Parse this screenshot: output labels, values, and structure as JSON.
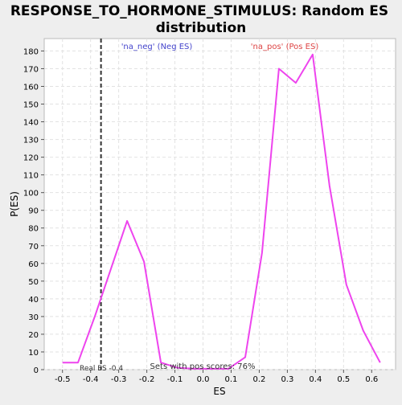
{
  "chart_data": {
    "type": "line",
    "title_line1": "RESPONSE_TO_HORMONE_STIMULUS: Random ES",
    "title_line2": "distribution",
    "xlabel": "ES",
    "ylabel": "P(ES)",
    "xlim": [
      -0.565,
      0.685
    ],
    "ylim": [
      0,
      187
    ],
    "x_ticks": [
      -0.5,
      -0.4,
      -0.3,
      -0.2,
      -0.1,
      0.0,
      0.1,
      0.2,
      0.3,
      0.4,
      0.5,
      0.6
    ],
    "x_tick_labels": [
      "-0.5",
      "-0.4",
      "-0.3",
      "-0.2",
      "-0.1",
      "0.0",
      "0.1",
      "0.2",
      "0.3",
      "0.4",
      "0.5",
      "0.6"
    ],
    "y_ticks": [
      0,
      10,
      20,
      30,
      40,
      50,
      60,
      70,
      80,
      90,
      100,
      110,
      120,
      130,
      140,
      150,
      160,
      170,
      180
    ],
    "grid": true,
    "series": [
      {
        "color": "#ee44ee",
        "x": [
          -0.5,
          -0.445,
          -0.385,
          -0.27,
          -0.21,
          -0.15,
          -0.09,
          -0.03,
          0.03,
          0.09,
          0.15,
          0.21,
          0.27,
          0.33,
          0.39,
          0.45,
          0.51,
          0.57,
          0.63
        ],
        "y": [
          4,
          4,
          30,
          84,
          61,
          4,
          1,
          0.5,
          0.5,
          0.5,
          7,
          66,
          170,
          162,
          178,
          104,
          48,
          22,
          4
        ]
      }
    ],
    "real_es": {
      "x": -0.363,
      "label": "Real ES -0.4",
      "color": "#333333"
    },
    "annotations": {
      "neg": {
        "text": "'na_neg' (Neg ES)",
        "color": "#4444cc"
      },
      "pos": {
        "text": "'na_pos' (Pos ES)",
        "color": "#dd4444"
      },
      "sets": {
        "text": "Sets with pos scores: 76%",
        "color": "#333333"
      }
    }
  }
}
